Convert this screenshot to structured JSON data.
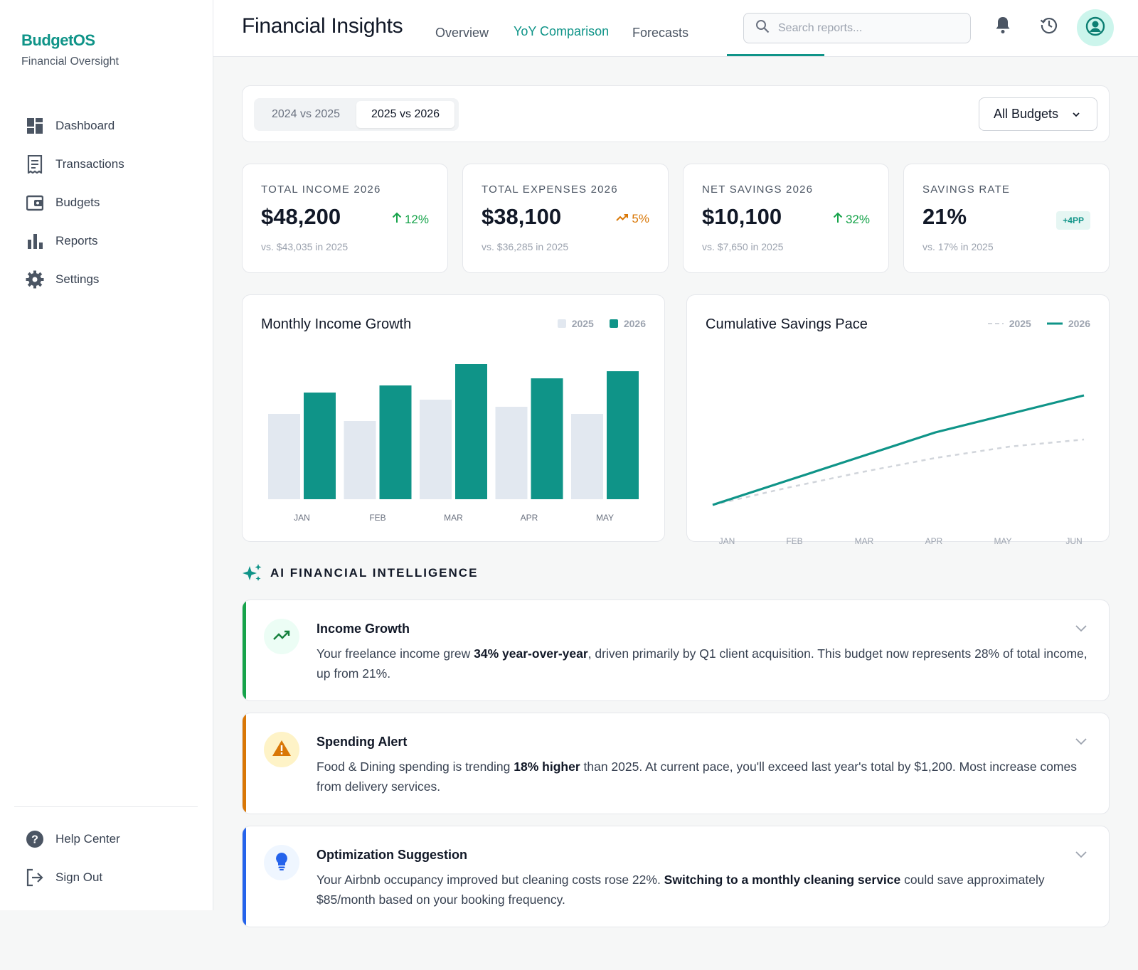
{
  "brand": {
    "name": "BudgetOS",
    "subtitle": "Financial Oversight"
  },
  "sidebar": {
    "items": [
      {
        "label": "Dashboard",
        "icon": "dashboard-icon"
      },
      {
        "label": "Transactions",
        "icon": "receipt-icon"
      },
      {
        "label": "Budgets",
        "icon": "wallet-icon"
      },
      {
        "label": "Reports",
        "icon": "bar-chart-icon"
      },
      {
        "label": "Settings",
        "icon": "gear-icon"
      }
    ],
    "bottom": [
      {
        "label": "Help Center",
        "icon": "help-icon"
      },
      {
        "label": "Sign Out",
        "icon": "sign-out-icon"
      }
    ]
  },
  "header": {
    "title": "Financial Insights",
    "tabs": [
      {
        "label": "Overview",
        "active": false
      },
      {
        "label": "YoY Comparison",
        "active": true
      },
      {
        "label": "Forecasts",
        "active": false
      }
    ],
    "search_placeholder": "Search reports..."
  },
  "filters": {
    "segments": [
      {
        "label": "2024 vs 2025",
        "active": false
      },
      {
        "label": "2025 vs 2026",
        "active": true
      }
    ],
    "select_value": "All Budgets"
  },
  "stats": [
    {
      "label": "TOTAL INCOME 2026",
      "value": "$48,200",
      "delta": "12%",
      "delta_icon": "arrow-up-icon",
      "delta_color": "#16a34a",
      "compare": "vs. $43,035 in 2025"
    },
    {
      "label": "TOTAL EXPENSES 2026",
      "value": "$38,100",
      "delta": "5%",
      "delta_icon": "trending-up-icon",
      "delta_color": "#d97706",
      "compare": "vs. $36,285 in 2025"
    },
    {
      "label": "NET SAVINGS 2026",
      "value": "$10,100",
      "delta": "32%",
      "delta_icon": "arrow-up-icon",
      "delta_color": "#16a34a",
      "compare": "vs. $7,650 in 2025"
    },
    {
      "label": "SAVINGS RATE",
      "value": "21%",
      "delta": "+4PP",
      "delta_icon": "",
      "delta_color": "#0f9488",
      "compare": "vs. 17% in 2025"
    }
  ],
  "colors": {
    "accent": "#0f9488",
    "prev_year": "#e2e8f0",
    "green": "#16a34a",
    "orange": "#d97706",
    "blue": "#2563eb"
  },
  "chart_data": [
    {
      "type": "bar",
      "title": "Monthly Income Growth",
      "categories": [
        "JAN",
        "FEB",
        "MAR",
        "APR",
        "MAY"
      ],
      "series": [
        {
          "name": "2025",
          "values": [
            60,
            55,
            70,
            65,
            60
          ]
        },
        {
          "name": "2026",
          "values": [
            75,
            80,
            95,
            85,
            90
          ]
        }
      ],
      "ylim": [
        0,
        100
      ],
      "grid": false,
      "legend": "top-right"
    },
    {
      "type": "line",
      "title": "Cumulative Savings Pace",
      "categories": [
        "JAN",
        "FEB",
        "MAR",
        "APR",
        "MAY",
        "JUN"
      ],
      "series": [
        {
          "name": "2025",
          "values": [
            10,
            22,
            33,
            43,
            51,
            56
          ],
          "style": "dashed"
        },
        {
          "name": "2026",
          "values": [
            10,
            27,
            44,
            61,
            74,
            87
          ],
          "style": "solid"
        }
      ],
      "ylim": [
        0,
        100
      ],
      "grid": false,
      "legend": "top-right"
    }
  ],
  "ai": {
    "heading": "AI FINANCIAL INTELLIGENCE",
    "insights": [
      {
        "title": "Income Growth",
        "icon": "trending-up-icon",
        "color": "#16a34a",
        "icon_bg": "#ecfdf5",
        "body": [
          {
            "text": "Your freelance income grew ",
            "bold": false
          },
          {
            "text": "34% year-over-year",
            "bold": true
          },
          {
            "text": ", driven primarily by Q1 client acquisition. This budget now represents 28% of total income, up from 21%.",
            "bold": false
          }
        ]
      },
      {
        "title": "Spending Alert",
        "icon": "warning-icon",
        "color": "#d97706",
        "icon_bg": "#fef3c7",
        "body": [
          {
            "text": "Food & Dining spending is trending ",
            "bold": false
          },
          {
            "text": "18% higher",
            "bold": true
          },
          {
            "text": " than 2025. At current pace, you'll exceed last year's total by $1,200. Most increase comes from delivery services.",
            "bold": false
          }
        ]
      },
      {
        "title": "Optimization Suggestion",
        "icon": "lightbulb-icon",
        "color": "#2563eb",
        "icon_bg": "#eff6ff",
        "body": [
          {
            "text": "Your Airbnb occupancy improved but cleaning costs rose 22%. ",
            "bold": false
          },
          {
            "text": "Switching to a monthly cleaning service",
            "bold": true
          },
          {
            "text": " could save approximately $85/month based on your booking frequency.",
            "bold": false
          }
        ]
      }
    ]
  }
}
